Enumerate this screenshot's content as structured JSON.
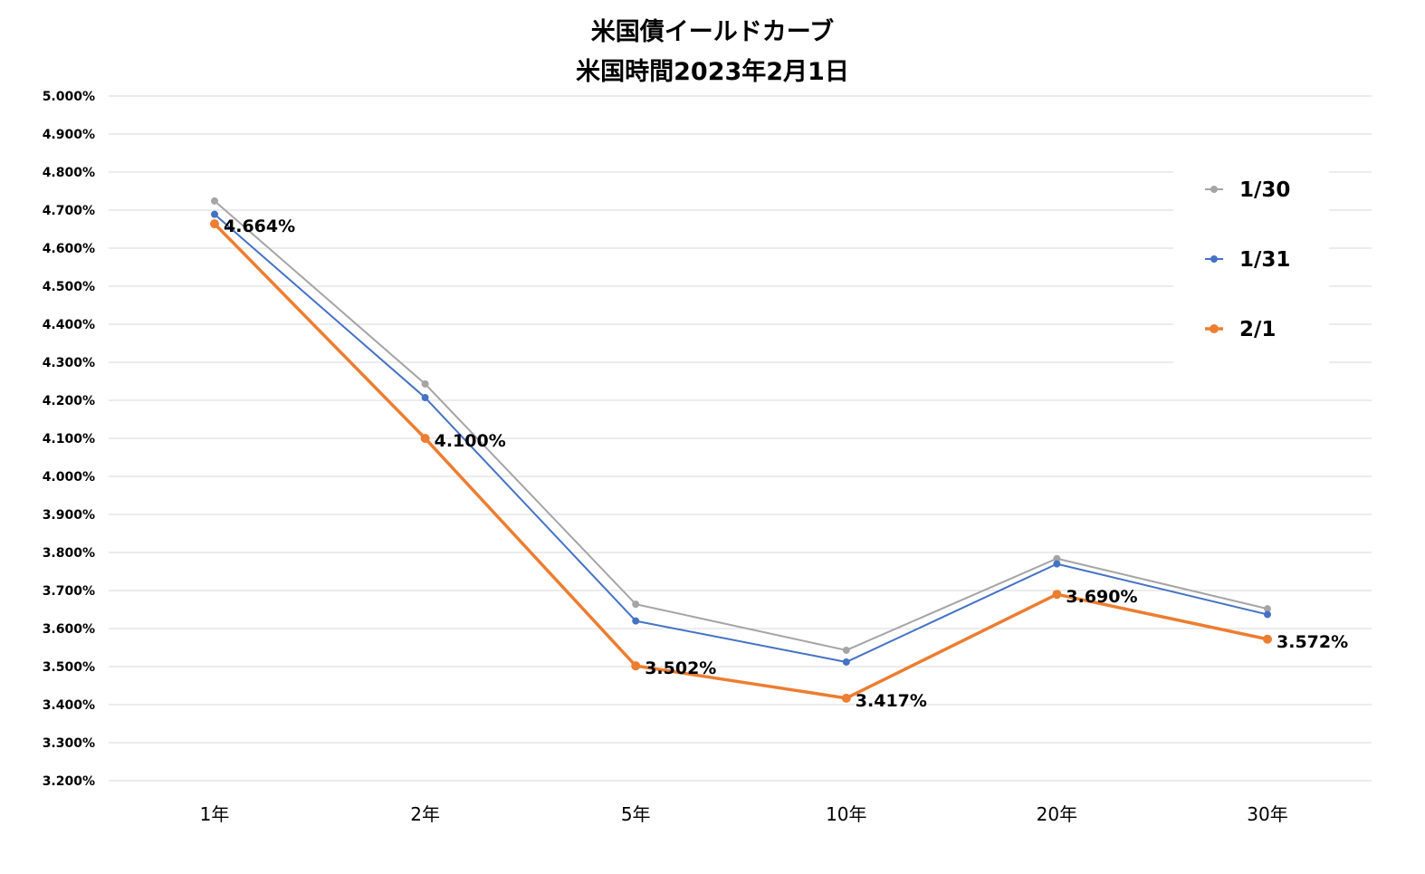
{
  "chart_data": {
    "type": "line",
    "title": [
      "米国債イールドカーブ",
      "米国時間2023年2月1日"
    ],
    "categories": [
      "1年",
      "2年",
      "5年",
      "10年",
      "20年",
      "30年"
    ],
    "ylim": [
      3.2,
      5.0
    ],
    "ytick_step": 0.1,
    "ytick_format": "0.000%",
    "grid": true,
    "legend_position": "right",
    "series": [
      {
        "name": "1/30",
        "color": "#a5a5a5",
        "values": [
          4.724,
          4.243,
          3.664,
          3.543,
          3.784,
          3.652
        ]
      },
      {
        "name": "1/31",
        "color": "#4472c4",
        "values": [
          4.689,
          4.207,
          3.62,
          3.512,
          3.77,
          3.637
        ]
      },
      {
        "name": "2/1",
        "color": "#ed7d31",
        "values": [
          4.664,
          4.1,
          3.502,
          3.417,
          3.69,
          3.572
        ],
        "data_labels": [
          "4.664%",
          "4.100%",
          "3.502%",
          "3.417%",
          "3.690%",
          "3.572%"
        ]
      }
    ]
  }
}
